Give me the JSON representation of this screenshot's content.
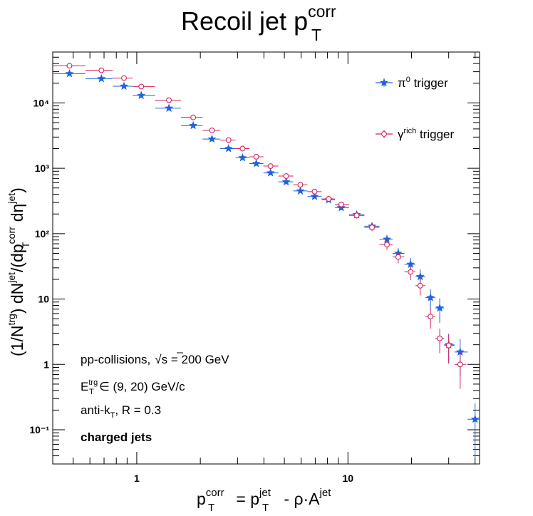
{
  "chart_data": {
    "type": "scatter",
    "title": "Recoil jet p",
    "title_sup": "corr",
    "title_sub": "T",
    "xlabel": "p_T^corr = p_T^jet - ρ·A^jet",
    "ylabel": "(1/N^trg) dN^jet/(dp_T^corr dη^jet)",
    "x_scale": "log",
    "y_scale": "log",
    "xlim": [
      0.4,
      42
    ],
    "ylim": [
      0.03,
      60000
    ],
    "x_tick_labels": [
      "1",
      "10"
    ],
    "y_tick_labels": [
      "10⁻¹",
      "1",
      "10",
      "10²",
      "10³",
      "10⁴"
    ],
    "series": [
      {
        "name": "π⁰ trigger",
        "color": "#1e63e0",
        "marker": "filled-star",
        "points": [
          {
            "x": 0.48,
            "y": 28000
          },
          {
            "x": 0.68,
            "y": 23500
          },
          {
            "x": 0.87,
            "y": 18000
          },
          {
            "x": 1.05,
            "y": 13000
          },
          {
            "x": 1.42,
            "y": 8300
          },
          {
            "x": 1.85,
            "y": 4500
          },
          {
            "x": 2.27,
            "y": 2800
          },
          {
            "x": 2.72,
            "y": 2000
          },
          {
            "x": 3.17,
            "y": 1450
          },
          {
            "x": 3.68,
            "y": 1180
          },
          {
            "x": 4.3,
            "y": 850
          },
          {
            "x": 5.1,
            "y": 620
          },
          {
            "x": 5.95,
            "y": 450
          },
          {
            "x": 6.95,
            "y": 370
          },
          {
            "x": 8.1,
            "y": 330
          },
          {
            "x": 9.3,
            "y": 250
          },
          {
            "x": 11.0,
            "y": 195
          },
          {
            "x": 13.0,
            "y": 130
          },
          {
            "x": 15.3,
            "y": 82
          },
          {
            "x": 17.3,
            "y": 50
          },
          {
            "x": 19.8,
            "y": 34
          },
          {
            "x": 22.0,
            "y": 22
          },
          {
            "x": 24.6,
            "y": 10.5
          },
          {
            "x": 27.2,
            "y": 7.3
          },
          {
            "x": 30.0,
            "y": 2.0
          },
          {
            "x": 34.0,
            "y": 1.55
          },
          {
            "x": 40.0,
            "y": 0.145
          }
        ]
      },
      {
        "name": "γrich trigger",
        "name_sup": "rich",
        "color": "#d6205a",
        "marker": "open-circle",
        "points": [
          {
            "x": 0.48,
            "y": 37000
          },
          {
            "x": 0.68,
            "y": 31500
          },
          {
            "x": 0.87,
            "y": 24000
          },
          {
            "x": 1.05,
            "y": 17800
          },
          {
            "x": 1.42,
            "y": 11000
          },
          {
            "x": 1.85,
            "y": 6000
          },
          {
            "x": 2.27,
            "y": 3800
          },
          {
            "x": 2.72,
            "y": 2700
          },
          {
            "x": 3.17,
            "y": 2000
          },
          {
            "x": 3.68,
            "y": 1500
          },
          {
            "x": 4.3,
            "y": 1080
          },
          {
            "x": 5.1,
            "y": 760
          },
          {
            "x": 5.95,
            "y": 560
          },
          {
            "x": 6.95,
            "y": 440
          },
          {
            "x": 8.1,
            "y": 340
          },
          {
            "x": 9.3,
            "y": 280
          },
          {
            "x": 11.0,
            "y": 190
          },
          {
            "x": 13.0,
            "y": 125
          },
          {
            "x": 15.3,
            "y": 68
          },
          {
            "x": 17.3,
            "y": 44
          },
          {
            "x": 19.8,
            "y": 26
          },
          {
            "x": 22.0,
            "y": 16
          },
          {
            "x": 24.6,
            "y": 5.4
          },
          {
            "x": 27.2,
            "y": 2.5
          },
          {
            "x": 30.0,
            "y": 1.95
          },
          {
            "x": 34.0,
            "y": 1.0
          }
        ]
      }
    ],
    "legend": {
      "placement": "top-right",
      "entries": [
        {
          "series": 0,
          "label": "π",
          "sup": "0",
          "after": " trigger"
        },
        {
          "series": 1,
          "label": "γ",
          "sup": "rich",
          "after": " trigger"
        }
      ]
    },
    "annotations": {
      "line1_a": "pp-collisions,",
      "line1_b": "s = 200 GeV",
      "line2_a": "E",
      "line2_sup": "trg",
      "line2_sub": "T",
      "line2_b": "∈ (9, 20) GeV/c",
      "line3_a": "anti-k",
      "line3_sub": "T",
      "line3_b": ", R = 0.3",
      "line4": "charged jets"
    },
    "x_axis_text": {
      "p": "p",
      "corr": "corr",
      "T": "T",
      "eq": " = p",
      "jet": "jet",
      "rest": " - ρ·A",
      "jet2": "jet"
    },
    "y_axis_text": {
      "a": "(1/N",
      "trg": "trg",
      "b": ") dN",
      "jet": "jet",
      "c": "/(dp",
      "corr": "corr",
      "T": "T",
      "d": " dη",
      "jet2": "jet",
      "e": ")"
    }
  }
}
